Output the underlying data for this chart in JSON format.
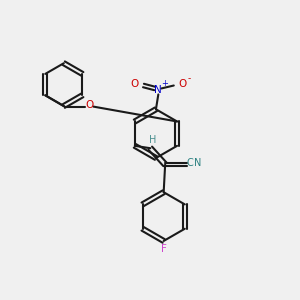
{
  "bg_color": "#f0f0f0",
  "bond_color": "#1a1a1a",
  "bond_width": 1.5,
  "atom_colors": {
    "N_plus": "#0000cc",
    "O_red": "#cc0000",
    "O_ether": "#cc0000",
    "N_cyan": "#2a8080",
    "H": "#4a9090",
    "F": "#cc44cc"
  },
  "fig_width": 3.0,
  "fig_height": 3.0,
  "dpi": 100,
  "xlim": [
    0,
    10
  ],
  "ylim": [
    0,
    10
  ]
}
